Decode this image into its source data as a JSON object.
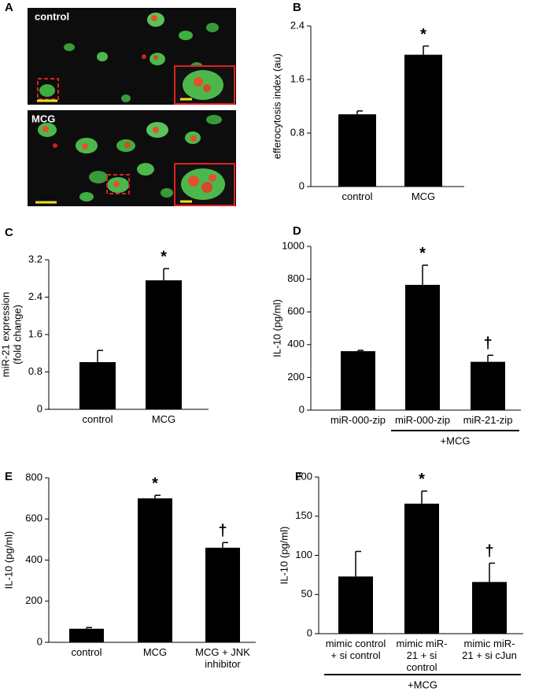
{
  "panel_a": {
    "label": "A",
    "images": [
      {
        "label": "control"
      },
      {
        "label": "MCG"
      }
    ]
  },
  "chart_data": [
    {
      "type": "bar",
      "panel": "B",
      "ylabel": [
        "efferocytosis index (au)"
      ],
      "categories": [
        "control",
        "MCG"
      ],
      "values": [
        1.08,
        1.97
      ],
      "errors": [
        0.05,
        0.13
      ],
      "annotations": [
        null,
        "*"
      ],
      "color": "#000000",
      "ylim": [
        0,
        2.4
      ],
      "yticks": [
        0,
        0.8,
        1.6,
        2.4
      ]
    },
    {
      "type": "bar",
      "panel": "C",
      "ylabel": [
        "miR-21 expression",
        "(fold change)"
      ],
      "categories": [
        "control",
        "MCG"
      ],
      "values": [
        1.01,
        2.76
      ],
      "errors": [
        0.25,
        0.25
      ],
      "annotations": [
        null,
        "*"
      ],
      "color": "#000000",
      "ylim": [
        0,
        3.2
      ],
      "yticks": [
        0,
        0.8,
        1.6,
        2.4,
        3.2
      ]
    },
    {
      "type": "bar",
      "panel": "D",
      "ylabel": [
        "IL-10 (pg/ml)"
      ],
      "categories": [
        "miR-000-zip",
        "miR-000-zip",
        "miR-21-zip"
      ],
      "values": [
        360,
        765,
        295
      ],
      "errors": [
        5,
        120,
        40
      ],
      "annotations": [
        null,
        "*",
        "†"
      ],
      "group_label": "+MCG",
      "color": "#000000",
      "ylim": [
        0,
        1000
      ],
      "yticks": [
        0,
        200,
        400,
        600,
        800,
        1000
      ]
    },
    {
      "type": "bar",
      "panel": "E",
      "ylabel": [
        "IL-10 (pg/ml)"
      ],
      "categories": [
        "control",
        "MCG",
        "MCG + JNK inhibitor"
      ],
      "values": [
        66,
        700,
        460
      ],
      "errors": [
        6,
        15,
        25
      ],
      "annotations": [
        null,
        "*",
        "†"
      ],
      "color": "#000000",
      "ylim": [
        0,
        800
      ],
      "yticks": [
        0,
        200,
        400,
        600,
        800
      ]
    },
    {
      "type": "bar",
      "panel": "F",
      "ylabel": [
        "IL-10 (pg/ml)"
      ],
      "categories": [
        "mimic control + si control",
        "mimic miR-21 + si control",
        "mimic miR-21 + si cJun"
      ],
      "values": [
        73,
        166,
        66
      ],
      "errors": [
        32,
        16,
        24
      ],
      "annotations": [
        null,
        "*",
        "†"
      ],
      "group_label": "+MCG",
      "color": "#000000",
      "ylim": [
        0,
        200
      ],
      "yticks": [
        0,
        50,
        100,
        150,
        200
      ]
    }
  ]
}
